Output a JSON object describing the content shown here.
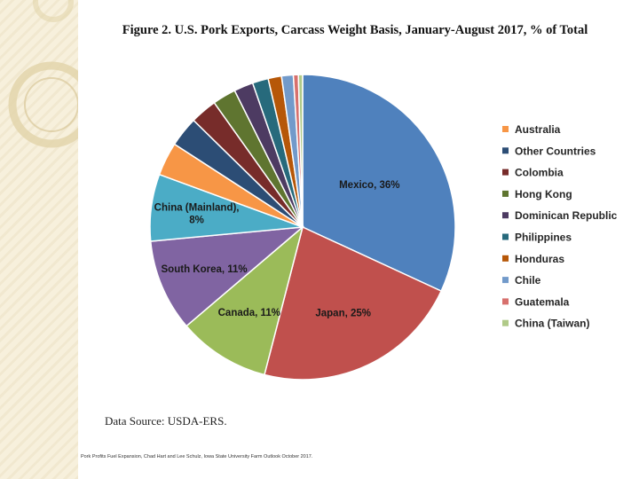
{
  "chart_data": {
    "type": "pie",
    "title": "Figure 2. U.S. Pork Exports, Carcass Weight Basis, January-August 2017, % of Total",
    "slices": [
      {
        "name": "Mexico",
        "value": 36,
        "label": "Mexico, 36%",
        "color": "#4f81bd"
      },
      {
        "name": "Japan",
        "value": 25,
        "label": "Japan, 25%",
        "color": "#c0504d"
      },
      {
        "name": "Canada",
        "value": 11,
        "label": "Canada, 11%",
        "color": "#9bbb59"
      },
      {
        "name": "South Korea",
        "value": 11,
        "label": "South Korea, 11%",
        "color": "#8064a2"
      },
      {
        "name": "China (Mainland)",
        "value": 8,
        "label": "China (Mainland),|8%",
        "color": "#4bacc6"
      },
      {
        "name": "Australia",
        "value": 4,
        "label": "",
        "color": "#f79646"
      },
      {
        "name": "Other Countries",
        "value": 3.6,
        "label": "",
        "color": "#2c4d75"
      },
      {
        "name": "Colombia",
        "value": 3.2,
        "label": "",
        "color": "#772c2a"
      },
      {
        "name": "Hong Kong",
        "value": 2.8,
        "label": "",
        "color": "#5f7530"
      },
      {
        "name": "Dominican Republic",
        "value": 2.3,
        "label": "",
        "color": "#4d3b62"
      },
      {
        "name": "Philippines",
        "value": 1.9,
        "label": "",
        "color": "#276a7c"
      },
      {
        "name": "Honduras",
        "value": 1.6,
        "label": "",
        "color": "#b65708"
      },
      {
        "name": "Chile",
        "value": 1.4,
        "label": "",
        "color": "#729aca"
      },
      {
        "name": "Guatemala",
        "value": 0.6,
        "label": "",
        "color": "#d7706d"
      },
      {
        "name": "China (Taiwan)",
        "value": 0.5,
        "label": "",
        "color": "#b0ca88"
      }
    ],
    "legend": {
      "placement": "right",
      "entries": [
        "Australia",
        "Other Countries",
        "Colombia",
        "Hong Kong",
        "Dominican Republic",
        "Philippines",
        "Honduras",
        "Chile",
        "Guatemala",
        "China (Taiwan)"
      ]
    }
  },
  "source": "Data Source: USDA-ERS.",
  "footer": "Pork Profits Fuel Expansion, Chad Hart and Lee Schulz, Iowa State University Farm Outlook October 2017."
}
